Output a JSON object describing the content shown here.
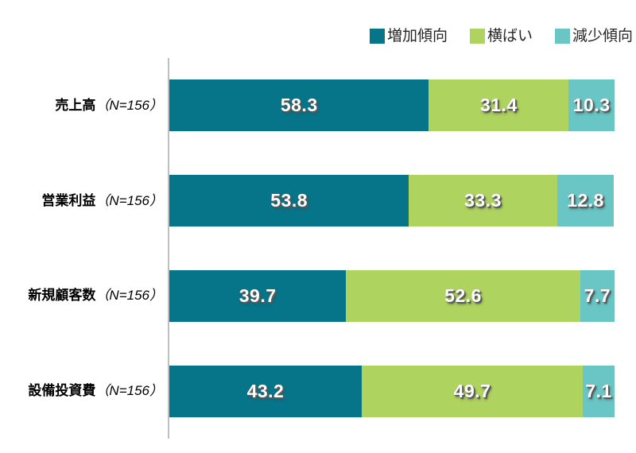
{
  "page": {
    "background": "#ffffff"
  },
  "chart_data": {
    "type": "bar",
    "orientation": "horizontal",
    "stacked": true,
    "unit": "percent",
    "title": "",
    "xlabel": "",
    "ylabel": "",
    "xlim": [
      0,
      100
    ],
    "grid": false,
    "legend_position": "top-right",
    "categories": [
      {
        "name": "売上高",
        "n_label": "（N=156）"
      },
      {
        "name": "営業利益",
        "n_label": "（N=156）"
      },
      {
        "name": "新規顧客数",
        "n_label": "（N=156）"
      },
      {
        "name": "設備投資費",
        "n_label": "（N=156）"
      }
    ],
    "series": [
      {
        "name": "増加傾向",
        "color": "#06758A",
        "values": [
          58.3,
          53.8,
          39.7,
          43.2
        ]
      },
      {
        "name": "横ばい",
        "color": "#AFD35F",
        "values": [
          31.4,
          33.3,
          52.6,
          49.7
        ]
      },
      {
        "name": "減少傾向",
        "color": "#69C6C5",
        "values": [
          10.3,
          12.8,
          7.7,
          7.1
        ]
      }
    ]
  },
  "style": {
    "axis_line_color": "#BFBFBF",
    "value_text_color": "#FFFFFF",
    "value_shadow_color": "#595959",
    "category_label_color": "#000000",
    "legend_text_color": "#262626"
  }
}
